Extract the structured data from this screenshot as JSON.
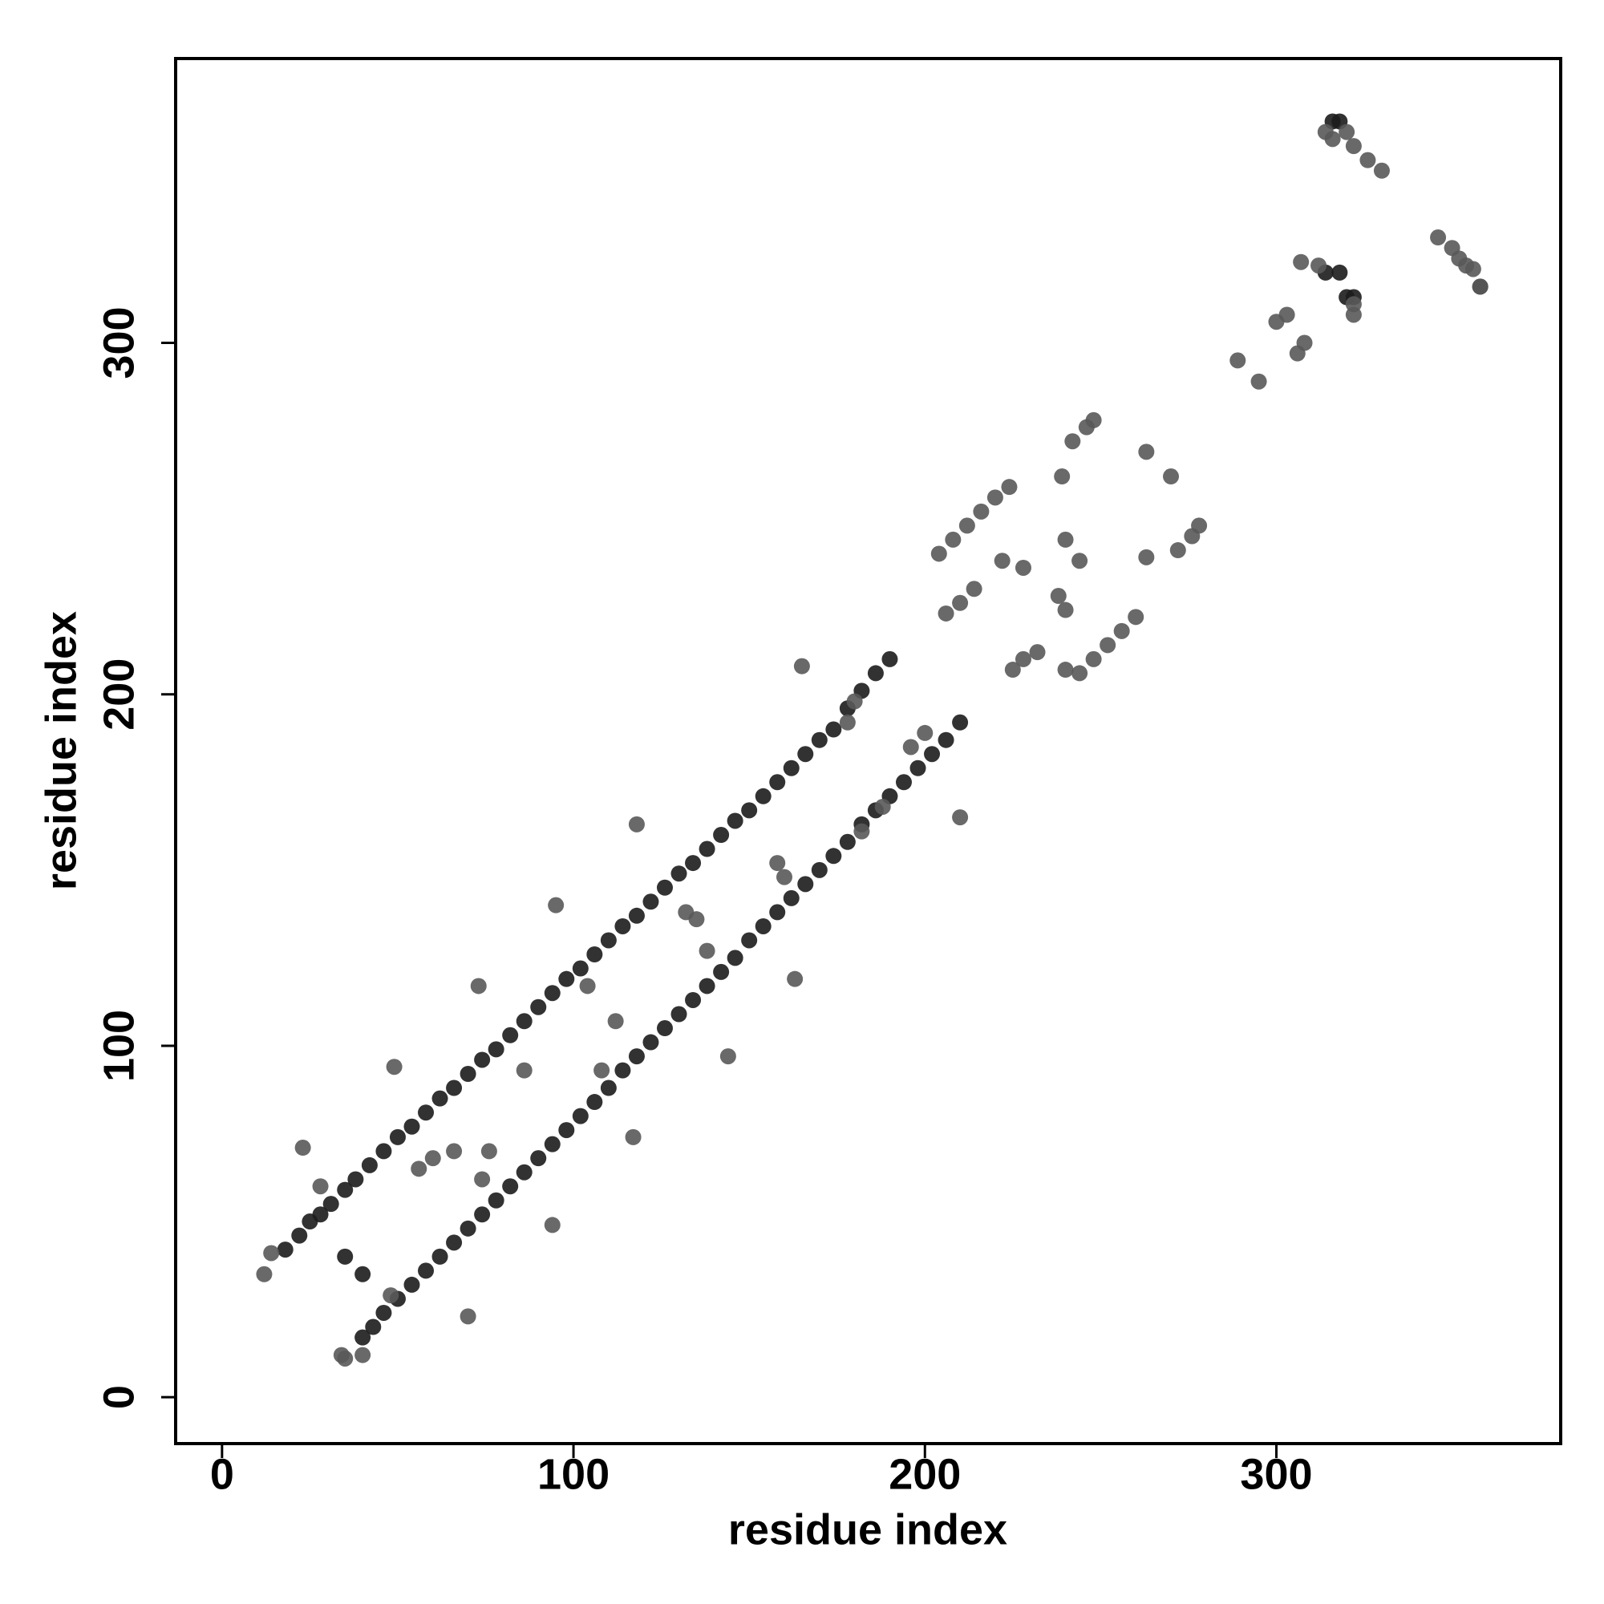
{
  "chart_data": {
    "type": "scatter",
    "x_label": "residue index",
    "y_label": "residue index",
    "xlim": [
      -13.2,
      380.9
    ],
    "ylim": [
      -13.2,
      380.9
    ],
    "xticks": [
      0,
      100,
      200,
      300
    ],
    "yticks": [
      0,
      100,
      200,
      300
    ],
    "series": [
      {
        "color": "#1c1c1c",
        "x": [
          18,
          22,
          25,
          28,
          31,
          35,
          38,
          42,
          46,
          50,
          54,
          58,
          62,
          66,
          70,
          74,
          78,
          82,
          86,
          90,
          94,
          98,
          102,
          106,
          110,
          114,
          118,
          122,
          126,
          130,
          134,
          138,
          142,
          146,
          150,
          154,
          158,
          162,
          166,
          170,
          174,
          178,
          182,
          186,
          190,
          40,
          43,
          46,
          50,
          54,
          58,
          62,
          66,
          70,
          74,
          78,
          82,
          86,
          90,
          94,
          98,
          102,
          106,
          110,
          114,
          118,
          122,
          126,
          130,
          134,
          138,
          142,
          146,
          150,
          154,
          158,
          162,
          166,
          170,
          174,
          178,
          182,
          186,
          190,
          194,
          198,
          202,
          206,
          210,
          314,
          318,
          320,
          322,
          316,
          318,
          358,
          35,
          40
        ],
        "values": [
          42,
          46,
          50,
          52,
          55,
          59,
          62,
          66,
          70,
          74,
          77,
          81,
          85,
          88,
          92,
          96,
          99,
          103,
          107,
          111,
          115,
          119,
          122,
          126,
          130,
          134,
          137,
          141,
          145,
          149,
          152,
          156,
          160,
          164,
          167,
          171,
          175,
          179,
          183,
          187,
          190,
          196,
          201,
          206,
          210,
          17,
          20,
          24,
          28,
          32,
          36,
          40,
          44,
          48,
          52,
          56,
          60,
          64,
          68,
          72,
          76,
          80,
          84,
          88,
          93,
          97,
          101,
          105,
          109,
          113,
          117,
          121,
          125,
          130,
          134,
          138,
          142,
          146,
          150,
          154,
          158,
          163,
          167,
          171,
          175,
          179,
          183,
          187,
          192,
          320,
          320,
          313,
          313,
          363,
          363,
          316,
          40,
          35
        ]
      },
      {
        "color": "#595959",
        "x": [
          12,
          14,
          23,
          34,
          35,
          40,
          49,
          48,
          70,
          73,
          74,
          94,
          95,
          118,
          117,
          108,
          104,
          112,
          135,
          138,
          144,
          163,
          165,
          158,
          178,
          180,
          182,
          188,
          196,
          200,
          210,
          214,
          210,
          206,
          204,
          208,
          212,
          216,
          220,
          224,
          225,
          228,
          232,
          222,
          228,
          238,
          240,
          240,
          244,
          248,
          252,
          256,
          260,
          239,
          240,
          244,
          242,
          246,
          248,
          263,
          270,
          263,
          272,
          276,
          278,
          289,
          295,
          300,
          303,
          306,
          308,
          307,
          312,
          314,
          316,
          320,
          322,
          326,
          330,
          322,
          322,
          346,
          350,
          354,
          358,
          356,
          352,
          60,
          66,
          86,
          132,
          160,
          28,
          56,
          76
        ],
        "values": [
          35,
          41,
          71,
          12,
          11,
          12,
          94,
          29,
          23,
          117,
          62,
          49,
          140,
          163,
          74,
          93,
          117,
          107,
          136,
          127,
          97,
          119,
          208,
          152,
          192,
          198,
          161,
          168,
          185,
          189,
          165,
          230,
          226,
          223,
          240,
          244,
          248,
          252,
          256,
          259,
          207,
          210,
          212,
          238,
          236,
          228,
          224,
          207,
          206,
          210,
          214,
          218,
          222,
          262,
          244,
          238,
          272,
          276,
          278,
          269,
          262,
          239,
          241,
          245,
          248,
          295,
          289,
          306,
          308,
          297,
          300,
          323,
          322,
          360,
          358,
          360,
          356,
          352,
          349,
          308,
          311,
          330,
          327,
          322,
          316,
          321,
          324,
          68,
          70,
          93,
          138,
          148,
          60,
          65,
          70
        ]
      }
    ]
  }
}
